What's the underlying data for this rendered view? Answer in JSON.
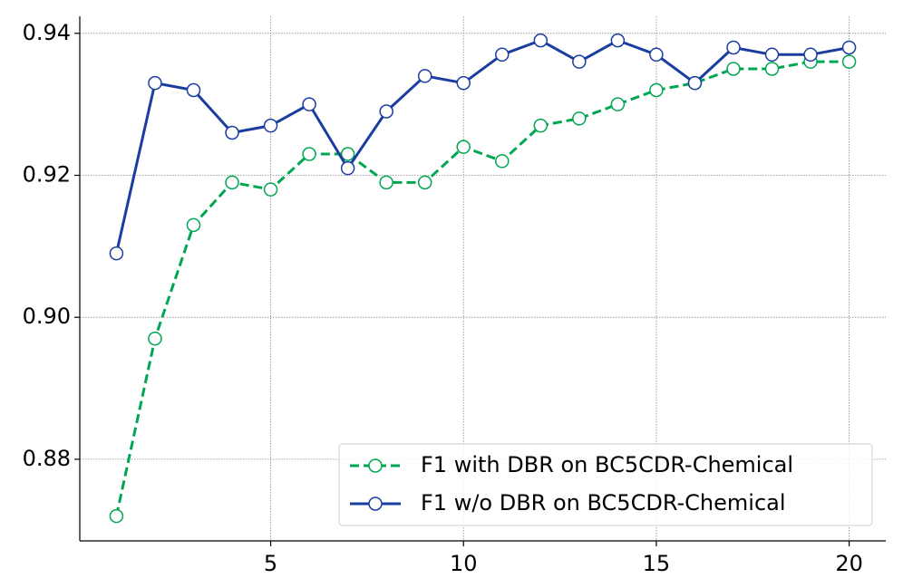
{
  "chart_data": {
    "type": "line",
    "x": [
      1,
      2,
      3,
      4,
      5,
      6,
      7,
      8,
      9,
      10,
      11,
      12,
      13,
      14,
      15,
      16,
      17,
      18,
      19,
      20
    ],
    "series": [
      {
        "name": "F1 with DBR on BC5CDR-Chemical",
        "color": "#00a651",
        "dashed": true,
        "values": [
          0.872,
          0.897,
          0.913,
          0.919,
          0.918,
          0.923,
          0.923,
          0.919,
          0.919,
          0.924,
          0.922,
          0.927,
          0.928,
          0.93,
          0.932,
          0.933,
          0.935,
          0.935,
          0.936,
          0.936
        ]
      },
      {
        "name": "F1 w/o DBR on BC5CDR-Chemical",
        "color": "#1a3da0",
        "dashed": false,
        "values": [
          0.909,
          0.933,
          0.932,
          0.926,
          0.927,
          0.93,
          0.921,
          0.929,
          0.934,
          0.933,
          0.937,
          0.939,
          0.936,
          0.939,
          0.937,
          0.933,
          0.938,
          0.937,
          0.937,
          0.938
        ]
      }
    ],
    "xlim": [
      0.05,
      20.95
    ],
    "xticks": [
      5,
      10,
      15,
      20
    ],
    "ylim": [
      0.8685,
      0.9424
    ],
    "yticks": [
      0.88,
      {
        "value": 0.9,
        "label": "0.90"
      },
      0.92,
      0.94
    ],
    "grid": true,
    "legend": "lower right"
  }
}
